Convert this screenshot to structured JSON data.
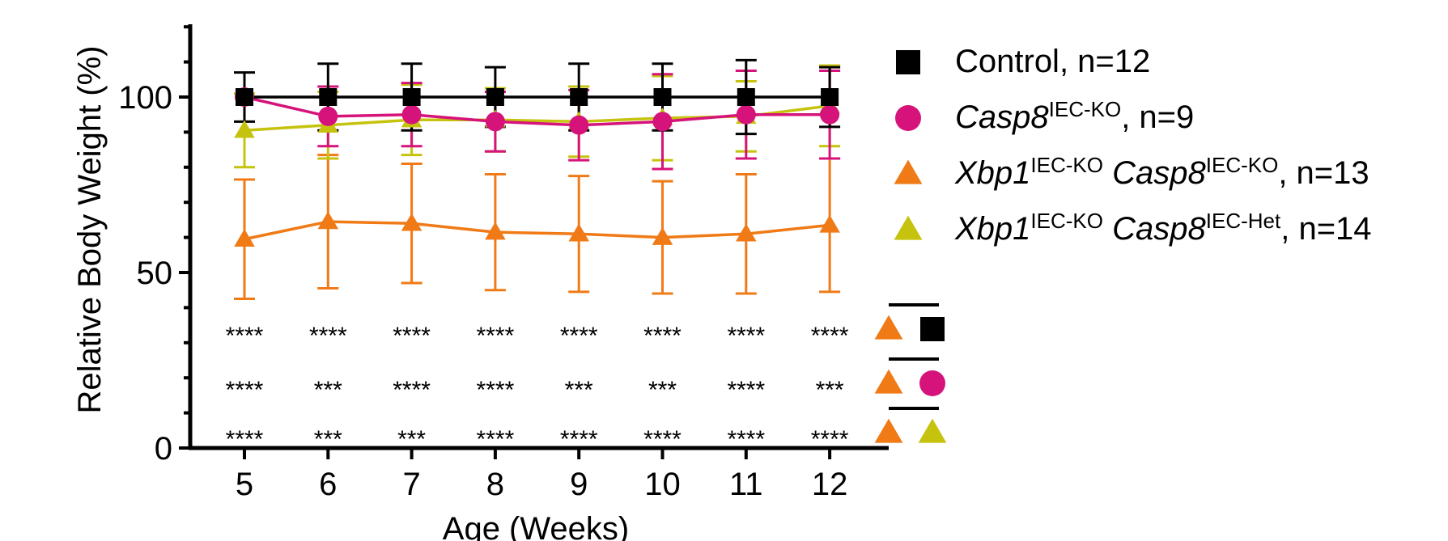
{
  "chart_data": {
    "type": "line",
    "title": "",
    "xlabel": "Age (Weeks)",
    "ylabel": "Relative Body Weight (%)",
    "x": [
      5,
      6,
      7,
      8,
      9,
      10,
      11,
      12
    ],
    "xlim": [
      4.3,
      12.7
    ],
    "ylim": [
      0,
      120
    ],
    "yticks": [
      0,
      50,
      100
    ],
    "xticks": [
      5,
      6,
      7,
      8,
      9,
      10,
      11,
      12
    ],
    "grid": false,
    "legend_position": "right",
    "series": [
      {
        "name": "Control, n=12",
        "color": "#000000",
        "marker": "square",
        "values": [
          100,
          100,
          100,
          100,
          100,
          100,
          100,
          100
        ],
        "error": [
          7,
          9.5,
          9.5,
          8.5,
          9.5,
          9.5,
          10.5,
          8.5
        ]
      },
      {
        "name": "Casp8 IEC-KO, n=9",
        "color": "#d6137a",
        "marker": "circle",
        "values": [
          100,
          94.5,
          95,
          93,
          92,
          93,
          95,
          95
        ],
        "error": [
          0,
          8.5,
          9,
          8.5,
          10,
          13.5,
          12.5,
          12.5
        ]
      },
      {
        "name": "Xbp1 IEC-KO Casp8 IEC-KO, n=13",
        "color": "#f07a16",
        "marker": "triangle",
        "values": [
          59.5,
          64.5,
          64,
          61.5,
          61,
          60,
          61,
          63.5
        ],
        "error": [
          17,
          19,
          17,
          16.5,
          16.5,
          16,
          17,
          19
        ]
      },
      {
        "name": "Xbp1 IEC-KO Casp8 IEC-Het, n=14",
        "color": "#c6c30f",
        "marker": "triangle",
        "values": [
          90.5,
          92,
          93.5,
          93.5,
          93,
          94,
          94.5,
          97.5
        ],
        "error": [
          10.5,
          9.5,
          10,
          9,
          10,
          12,
          10,
          11.5
        ]
      }
    ],
    "significance_rows": [
      {
        "stars": [
          "****",
          "****",
          "****",
          "****",
          "****",
          "****",
          "****",
          "****"
        ],
        "compare": [
          "triangle:#f07a16",
          "square:#000000"
        ]
      },
      {
        "stars": [
          "****",
          "***",
          "****",
          "****",
          "***",
          "***",
          "****",
          "***"
        ],
        "compare": [
          "triangle:#f07a16",
          "circle:#d6137a"
        ]
      },
      {
        "stars": [
          "****",
          "***",
          "***",
          "****",
          "****",
          "****",
          "****",
          "****"
        ],
        "compare": [
          "triangle:#f07a16",
          "triangle:#c6c30f"
        ]
      }
    ]
  },
  "legend": [
    {
      "marker": "square",
      "color": "#000000",
      "name": "Control",
      "sup1": "",
      "name2": "",
      "sup2": "",
      "suffix": ", n=12"
    },
    {
      "marker": "circle",
      "color": "#d6137a",
      "name": "Casp8",
      "sup1": "IEC-KO",
      "name2": "",
      "sup2": "",
      "suffix": ", n=9"
    },
    {
      "marker": "triangle",
      "color": "#f07a16",
      "name": "Xbp1",
      "sup1": "IEC-KO",
      "name2": "Casp8",
      "sup2": "IEC-KO",
      "suffix": ", n=13"
    },
    {
      "marker": "triangle",
      "color": "#c6c30f",
      "name": "Xbp1",
      "sup1": "IEC-KO",
      "name2": "Casp8",
      "sup2": "IEC-Het",
      "suffix": ", n=14"
    }
  ]
}
